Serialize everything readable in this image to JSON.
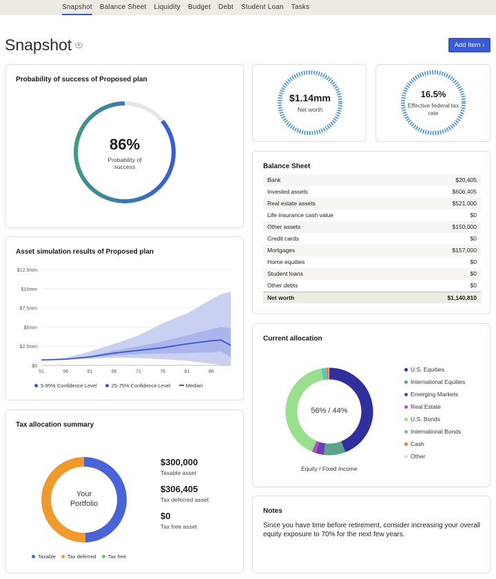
{
  "nav": {
    "items": [
      "Snapshot",
      "Balance Sheet",
      "Liquidity",
      "Budget",
      "Debt",
      "Student Loan",
      "Tasks"
    ],
    "active": 0
  },
  "page": {
    "title": "Snapshot",
    "add_item_label": "Add Item",
    "eye_icon": "eye-icon",
    "chevron_icon": "chevron-right-icon"
  },
  "probability": {
    "title": "Probability of success of Proposed plan",
    "value": "86%",
    "percent": 86,
    "label": "Probability of success",
    "colors": [
      "#3a5bd9",
      "#3f9a80"
    ]
  },
  "net_worth": {
    "value": "$1.14mm",
    "label": "Net worth"
  },
  "tax_rate": {
    "value": "16.5%",
    "label": "Effective federal tax rate"
  },
  "balance_sheet": {
    "title": "Balance Sheet",
    "rows": [
      {
        "label": "Bank",
        "value": "$20,405"
      },
      {
        "label": "Invested assets",
        "value": "$606,405"
      },
      {
        "label": "Real estate assets",
        "value": "$521,000"
      },
      {
        "label": "Life insurance cash value",
        "value": "$0"
      },
      {
        "label": "Other assets",
        "value": "$150,000"
      },
      {
        "label": "Credit cards",
        "value": "$0"
      },
      {
        "label": "Mortgages",
        "value": "$157,000"
      },
      {
        "label": "Home equities",
        "value": "$0"
      },
      {
        "label": "Student loans",
        "value": "$0"
      },
      {
        "label": "Other debts",
        "value": "$0"
      }
    ],
    "total": {
      "label": "Net worth",
      "value": "$1,140,810"
    }
  },
  "simulation": {
    "title": "Asset simulation results of Proposed plan"
  },
  "allocation": {
    "title": "Current allocation",
    "center": "56% / 44%",
    "caption": "Equity / Fixed Income"
  },
  "tax_summary": {
    "title": "Tax allocation summary",
    "center": "Your Portfolio",
    "items": [
      {
        "value": "$300,000",
        "label": "Taxable asset"
      },
      {
        "value": "$306,405",
        "label": "Tax deferred asset"
      },
      {
        "value": "$0",
        "label": "Tax free asset"
      }
    ],
    "legend": [
      "Taxable",
      "Tax deferred",
      "Tax free"
    ]
  },
  "notes": {
    "title": "Notes",
    "text": "Since you have time before retirement, consider increasing your overall equity exposure to 70% for the next few years."
  },
  "chart_data": [
    {
      "type": "area",
      "x": [
        51,
        56,
        61,
        66,
        71,
        76,
        81,
        86,
        88,
        90
      ],
      "series": [
        {
          "name": "5-95% Confidence Level",
          "low": [
            0.7,
            0.75,
            0.85,
            1.0,
            0.95,
            0.8,
            0.6,
            0.2,
            0.05,
            0.0
          ],
          "high": [
            0.7,
            1.0,
            1.8,
            2.8,
            3.9,
            5.5,
            6.8,
            8.6,
            9.3,
            9.6
          ],
          "color": "#c9d0f2"
        },
        {
          "name": "25-75% Confidence Level",
          "low": [
            0.7,
            0.8,
            1.0,
            1.3,
            1.45,
            1.55,
            1.6,
            1.7,
            1.8,
            1.1
          ],
          "high": [
            0.7,
            0.85,
            1.2,
            1.9,
            2.5,
            3.1,
            3.9,
            4.7,
            5.0,
            4.8
          ],
          "color": "#a3aeea"
        },
        {
          "name": "Median",
          "values": [
            0.7,
            0.8,
            1.1,
            1.6,
            1.95,
            2.3,
            2.8,
            3.2,
            3.3,
            2.6
          ],
          "color": "#3a55d0"
        }
      ],
      "xticks": [
        "51",
        "56",
        "61",
        "66",
        "71",
        "76",
        "81",
        "86"
      ],
      "yticks": [
        "$0",
        "$2.5mm",
        "$5mm",
        "$7.5mm",
        "$10mm",
        "$12.5mm"
      ],
      "ylim": [
        0,
        12.5
      ],
      "grid": true,
      "legend": "bottom"
    },
    {
      "type": "pie",
      "donut": true,
      "categories": [
        "U.S. Equities",
        "International Equities",
        "Emerging Markets",
        "Real Estate",
        "U.S. Bonds",
        "International Bonds",
        "Cash",
        "Other"
      ],
      "values": [
        44,
        8,
        3,
        1.5,
        40.5,
        2,
        0.8,
        0.2
      ],
      "colors": [
        "#2f2f9e",
        "#5aa58a",
        "#6a3fb0",
        "#b04fc4",
        "#98e08e",
        "#5cc4c0",
        "#f07a1a",
        "#dddddd"
      ],
      "legend": "right"
    },
    {
      "type": "pie",
      "donut": true,
      "categories": [
        "Taxable",
        "Tax deferred",
        "Tax free"
      ],
      "values": [
        300000,
        306405,
        0
      ],
      "colors": [
        "#4a63d8",
        "#ef9a2c",
        "#5ec870"
      ],
      "legend": "bottom"
    }
  ]
}
